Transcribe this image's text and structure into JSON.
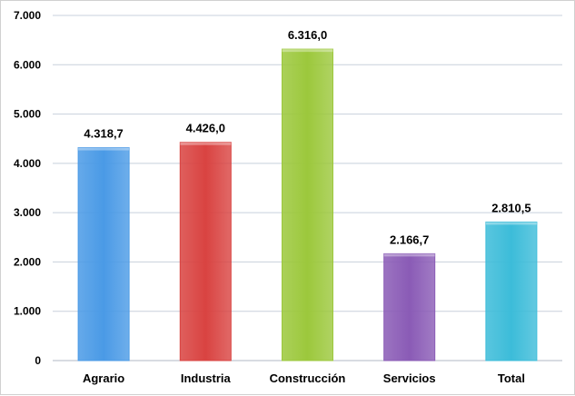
{
  "chart_data": {
    "type": "bar",
    "title": "",
    "xlabel": "",
    "ylabel": "",
    "categories": [
      "Agrario",
      "Industria",
      "Construcción",
      "Servicios",
      "Total"
    ],
    "values": [
      4318.7,
      4426.0,
      6316.0,
      2166.7,
      2810.5
    ],
    "value_labels": [
      "4.318,7",
      "4.426,0",
      "6.316,0",
      "2.166,7",
      "2.810,5"
    ],
    "colors": [
      "#4a9ae6",
      "#d94341",
      "#9cc83c",
      "#8a5bb6",
      "#3cbcd9"
    ],
    "ylim": [
      0,
      7000
    ],
    "yticks": [
      0,
      1000,
      2000,
      3000,
      4000,
      5000,
      6000,
      7000
    ],
    "ytick_labels": [
      "0",
      "1.000",
      "2.000",
      "3.000",
      "4.000",
      "5.000",
      "6.000",
      "7.000"
    ],
    "grid": true,
    "legend": "none"
  }
}
